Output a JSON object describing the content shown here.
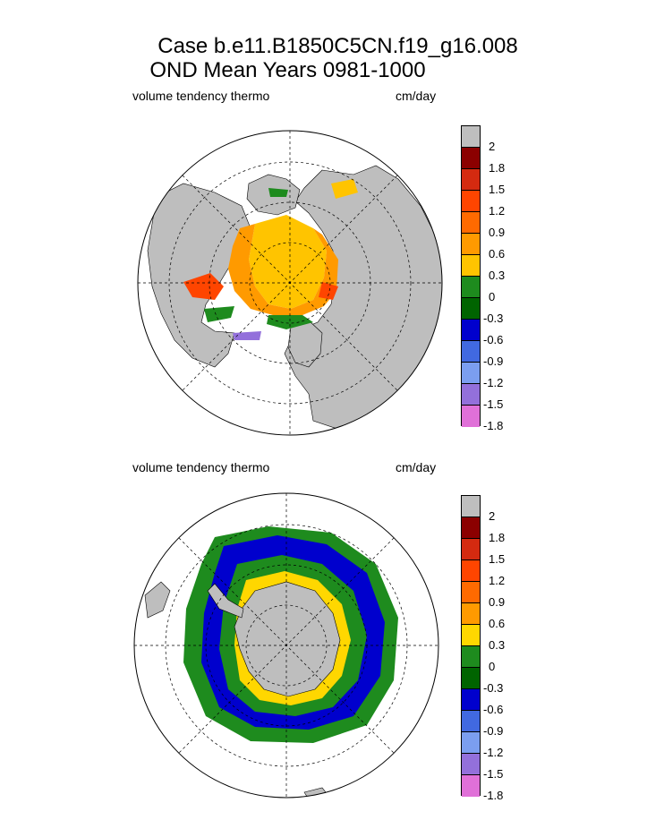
{
  "title": {
    "line1": "Case b.e11.B1850C5CN.f19_g16.008",
    "line2": "OND Mean   Years 0981-1000"
  },
  "panels": [
    {
      "hemisphere": "north",
      "variable_label": "volume tendency thermo",
      "units_label": "cm/day",
      "colorbar": {
        "colors": [
          "#bebebe",
          "#8b0000",
          "#d42a10",
          "#ff4500",
          "#ff6a00",
          "#ff9a00",
          "#ffc400",
          "#1e8b1e",
          "#006400",
          "#0000cd",
          "#4169e1",
          "#7b9ef0",
          "#9370db",
          "#e070d8"
        ],
        "labels": [
          "2",
          "1.8",
          "1.5",
          "1.2",
          "0.9",
          "0.6",
          "0.3",
          "0",
          "-0.3",
          "-0.6",
          "-0.9",
          "-1.2",
          "-1.5",
          "-1.8"
        ]
      }
    },
    {
      "hemisphere": "south",
      "variable_label": "volume tendency thermo",
      "units_label": "cm/day",
      "colorbar": {
        "colors": [
          "#bebebe",
          "#8b0000",
          "#d42a10",
          "#ff4500",
          "#ff6a00",
          "#ff9a00",
          "#ffd700",
          "#1e8b1e",
          "#006400",
          "#0000cd",
          "#4169e1",
          "#7b9ef0",
          "#9370db",
          "#e070d8"
        ],
        "labels": [
          "2",
          "1.8",
          "1.5",
          "1.2",
          "0.9",
          "0.6",
          "0.3",
          "0",
          "-0.3",
          "-0.6",
          "-0.9",
          "-1.2",
          "-1.5",
          "-1.8"
        ]
      }
    }
  ]
}
